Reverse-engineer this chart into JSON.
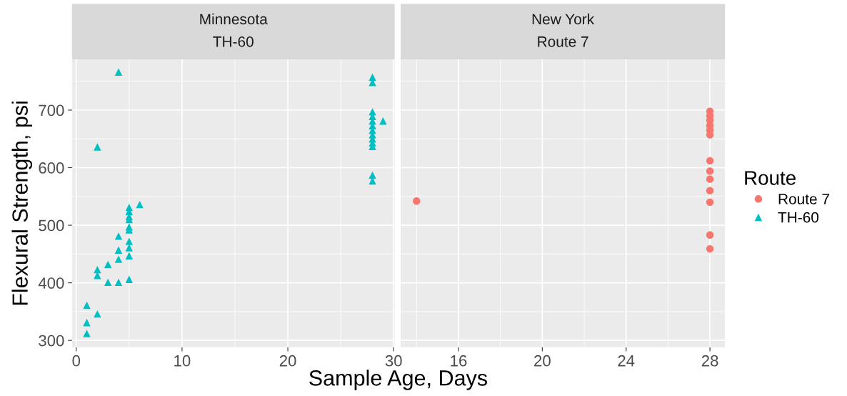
{
  "chart_data": [
    {
      "type": "scatter",
      "title": "Minnesota\nTH-60",
      "xlabel": "Sample Age, Days",
      "ylabel": "Flexural Strength, psi",
      "xlim": [
        -0.4,
        30.1
      ],
      "xticks": [
        0,
        10,
        20,
        30
      ],
      "ylim": [
        288,
        788
      ],
      "yticks": [
        300,
        400,
        500,
        600,
        700
      ],
      "grid": true,
      "series": [
        {
          "name": "TH-60",
          "color": "#00bfc4",
          "marker": "triangle",
          "x": [
            4,
            2,
            6,
            5,
            5,
            5,
            5,
            5,
            5,
            5,
            5,
            5,
            5,
            4,
            4,
            4,
            4,
            3,
            3,
            2,
            2,
            2,
            1,
            1,
            1,
            28,
            28,
            28,
            28,
            28,
            28,
            28,
            28,
            28,
            28,
            28,
            29,
            28,
            28
          ],
          "values": [
            766,
            636,
            536,
            531,
            524,
            515,
            510,
            497,
            492,
            472,
            461,
            447,
            406,
            481,
            457,
            441,
            401,
            432,
            401,
            423,
            413,
            346,
            361,
            331,
            312,
            757,
            748,
            697,
            689,
            681,
            673,
            665,
            657,
            650,
            643,
            637,
            681,
            587,
            577
          ]
        }
      ]
    },
    {
      "type": "scatter",
      "title": "New York\nRoute 7",
      "xlim": [
        13.24,
        28.72
      ],
      "xticks": [
        16,
        20,
        24,
        28
      ],
      "ylim": [
        288,
        788
      ],
      "yticks": [
        300,
        400,
        500,
        600,
        700
      ],
      "grid": true,
      "tick_labels": "x",
      "legend": "right",
      "legend_title": "Route",
      "series": [
        {
          "name": "Route 7",
          "color": "#f8766d",
          "marker": "circle",
          "x": [
            14,
            28,
            28,
            28,
            28,
            28,
            28,
            28,
            28,
            28,
            28,
            28,
            28,
            28
          ],
          "values": [
            542,
            698,
            690,
            682,
            673,
            665,
            657,
            612,
            594,
            580,
            560,
            540,
            483,
            459
          ]
        }
      ]
    }
  ]
}
